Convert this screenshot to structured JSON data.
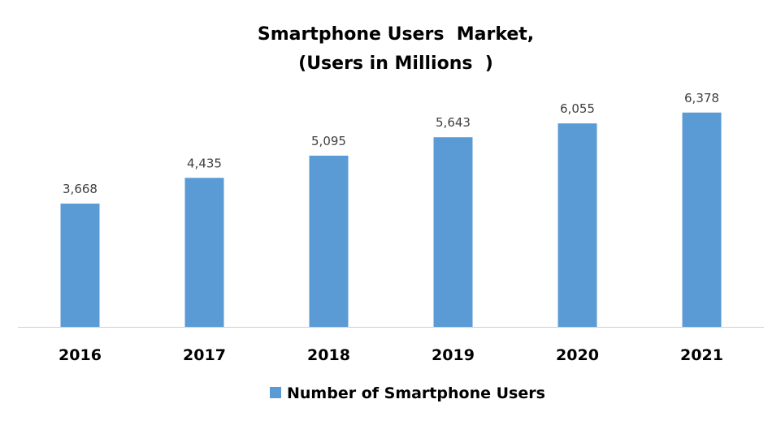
{
  "chart_data": {
    "type": "bar",
    "title": [
      "Smartphone Users  Market,",
      "(Users in Millions  )"
    ],
    "categories": [
      "2016",
      "2017",
      "2018",
      "2019",
      "2020",
      "2021"
    ],
    "series": [
      {
        "name": "Number of Smartphone Users",
        "values": [
          3668,
          4435,
          5095,
          5643,
          6055,
          6378
        ],
        "labels": [
          "3,668",
          "4,435",
          "5,095",
          "5,643",
          "6,055",
          "6,378"
        ],
        "color": "#5B9BD5"
      }
    ],
    "xlabel": "",
    "ylabel": "",
    "ylim": [
      0,
      7000
    ],
    "grid": false,
    "legend": "bottom"
  }
}
